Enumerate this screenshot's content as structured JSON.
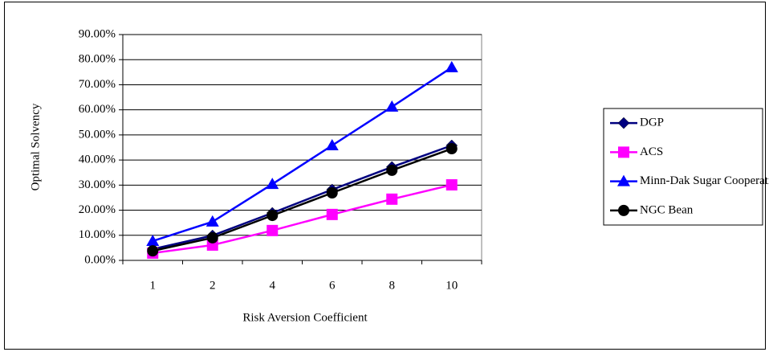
{
  "chart_data": {
    "type": "line",
    "x_label": "Risk Aversion Coefficient",
    "y_label": "Optimal Solvency",
    "categories": [
      "1",
      "2",
      "4",
      "6",
      "8",
      "10"
    ],
    "series": [
      {
        "name": "DGP",
        "color": "#000080",
        "marker": "diamond",
        "values": [
          4.5,
          9.9,
          18.9,
          28.2,
          37.2,
          45.8
        ]
      },
      {
        "name": "ACS",
        "color": "#ff00ff",
        "marker": "square",
        "values": [
          2.9,
          6.1,
          11.9,
          18.3,
          24.4,
          30.1
        ]
      },
      {
        "name": "Minn-Dak Sugar Cooperative",
        "color": "#0000ff",
        "marker": "triangle",
        "values": [
          7.7,
          15.4,
          30.4,
          45.8,
          61.2,
          76.9
        ]
      },
      {
        "name": "NGC Bean",
        "color": "#000000",
        "marker": "circle",
        "values": [
          3.8,
          9.0,
          17.9,
          26.9,
          35.9,
          44.5
        ]
      }
    ],
    "ylim": [
      0,
      90
    ],
    "yticks": [
      {
        "value": 0,
        "label": "0.00%"
      },
      {
        "value": 10,
        "label": "10.00%"
      },
      {
        "value": 20,
        "label": "20.00%"
      },
      {
        "value": 30,
        "label": "30.00%"
      },
      {
        "value": 40,
        "label": "40.00%"
      },
      {
        "value": 50,
        "label": "50.00%"
      },
      {
        "value": 60,
        "label": "60.00%"
      },
      {
        "value": 70,
        "label": "70.00%"
      },
      {
        "value": 80,
        "label": "80.00%"
      },
      {
        "value": 90,
        "label": "90.00%"
      }
    ],
    "grid": true,
    "legend": "right"
  }
}
